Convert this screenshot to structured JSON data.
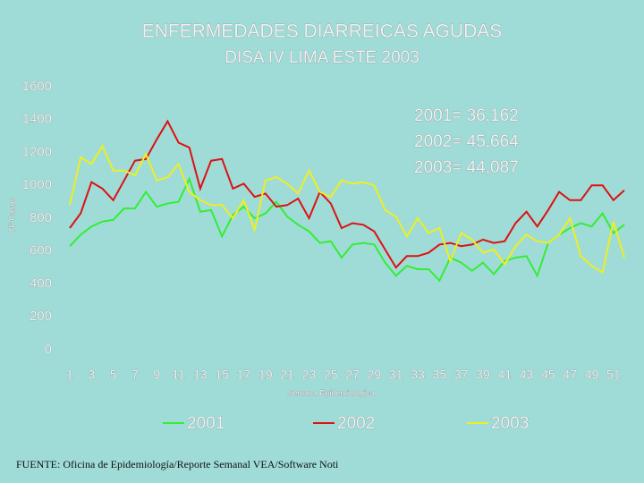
{
  "chart_data": {
    "type": "line",
    "title": "ENFERMEDADES DIARREICAS AGUDAS",
    "subtitle": "DISA IV LIMA ESTE 2003",
    "y_label": "N° Casos",
    "x_label": "Semana Epidemiologica",
    "annotations": [
      "2001= 36,162",
      "2002= 45,664",
      "2003= 44,087"
    ],
    "source": "FUENTE: Oficina de Epidemiología/Reporte Semanal VEA/Software Noti",
    "x": [
      1,
      2,
      3,
      4,
      5,
      6,
      7,
      8,
      9,
      10,
      11,
      12,
      13,
      14,
      15,
      16,
      17,
      18,
      19,
      20,
      21,
      22,
      23,
      24,
      25,
      26,
      27,
      28,
      29,
      30,
      31,
      32,
      33,
      34,
      35,
      36,
      37,
      38,
      39,
      40,
      41,
      42,
      43,
      44,
      45,
      46,
      47,
      48,
      49,
      50,
      51,
      52
    ],
    "xlim": [
      1,
      52
    ],
    "xticks": [
      1,
      3,
      5,
      7,
      9,
      11,
      13,
      15,
      17,
      19,
      21,
      23,
      25,
      27,
      29,
      31,
      33,
      35,
      37,
      39,
      41,
      43,
      45,
      47,
      49,
      51
    ],
    "ylim": [
      0,
      1600
    ],
    "yticks": [
      0,
      200,
      400,
      600,
      800,
      1000,
      1200,
      1400,
      1600
    ],
    "grid": false,
    "series": [
      {
        "name": "2001",
        "color": "#33ee33",
        "values": [
          630,
          700,
          750,
          780,
          790,
          860,
          860,
          960,
          870,
          890,
          900,
          1040,
          840,
          850,
          690,
          820,
          870,
          800,
          830,
          900,
          810,
          760,
          720,
          650,
          660,
          560,
          640,
          650,
          640,
          530,
          450,
          510,
          490,
          490,
          420,
          560,
          530,
          480,
          530,
          460,
          540,
          560,
          570,
          450,
          650,
          700,
          740,
          770,
          750,
          830,
          710,
          760
        ]
      },
      {
        "name": "2002",
        "color": "#dd1111",
        "values": [
          740,
          830,
          1020,
          980,
          910,
          1030,
          1150,
          1160,
          1280,
          1390,
          1260,
          1230,
          980,
          1150,
          1160,
          980,
          1010,
          930,
          950,
          870,
          880,
          920,
          800,
          960,
          890,
          740,
          770,
          760,
          720,
          610,
          500,
          570,
          570,
          590,
          640,
          650,
          630,
          640,
          670,
          650,
          660,
          770,
          840,
          750,
          850,
          960,
          910,
          910,
          1000,
          1000,
          910,
          970
        ]
      },
      {
        "name": "2003",
        "color": "#eeee22",
        "values": [
          880,
          1170,
          1130,
          1240,
          1090,
          1090,
          1060,
          1190,
          1030,
          1050,
          1130,
          960,
          910,
          880,
          880,
          800,
          910,
          730,
          1030,
          1050,
          1010,
          950,
          1090,
          960,
          930,
          1030,
          1010,
          1020,
          1000,
          850,
          810,
          690,
          800,
          710,
          740,
          540,
          710,
          670,
          590,
          610,
          520,
          630,
          700,
          660,
          650,
          700,
          800,
          570,
          510,
          470,
          780,
          560
        ]
      }
    ]
  }
}
